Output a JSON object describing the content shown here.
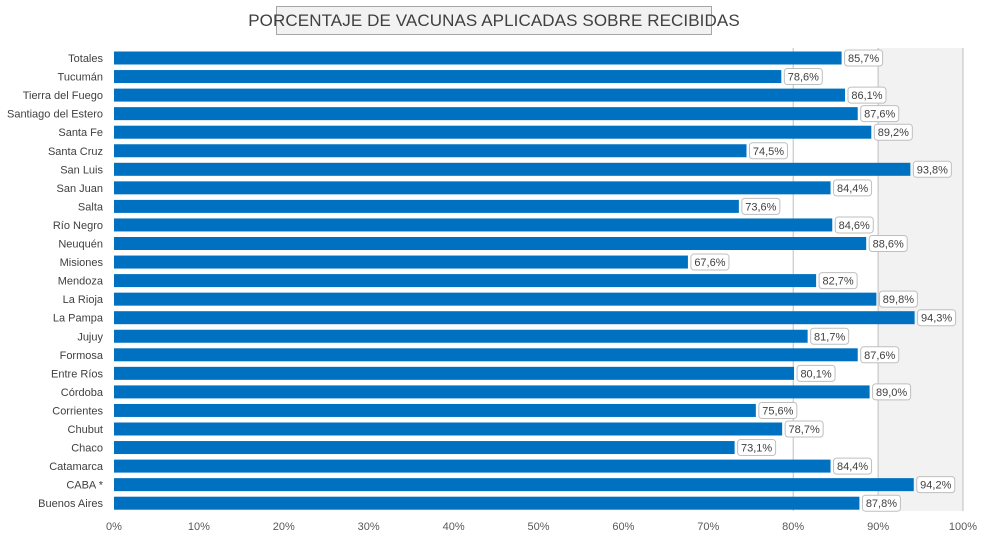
{
  "chart_data": {
    "type": "bar",
    "orientation": "horizontal",
    "title": "PORCENTAJE DE VACUNAS APLICADAS SOBRE RECIBIDAS",
    "categories": [
      "Totales",
      "Tucumán",
      "Tierra del Fuego",
      "Santiago del Estero",
      "Santa Fe",
      "Santa Cruz",
      "San Luis",
      "San Juan",
      "Salta",
      "Río Negro",
      "Neuquén",
      "Misiones",
      "Mendoza",
      "La Rioja",
      "La Pampa",
      "Jujuy",
      "Formosa",
      "Entre Ríos",
      "Córdoba",
      "Corrientes",
      "Chubut",
      "Chaco",
      "Catamarca",
      "CABA *",
      "Buenos Aires"
    ],
    "values": [
      85.7,
      78.6,
      86.1,
      87.6,
      89.2,
      74.5,
      93.8,
      84.4,
      73.6,
      84.6,
      88.6,
      67.6,
      82.7,
      89.8,
      94.3,
      81.7,
      87.6,
      80.1,
      89.0,
      75.6,
      78.7,
      73.1,
      84.4,
      94.2,
      87.8
    ],
    "value_labels": [
      "85,7%",
      "78,6%",
      "86,1%",
      "87,6%",
      "89,2%",
      "74,5%",
      "93,8%",
      "84,4%",
      "73,6%",
      "84,6%",
      "88,6%",
      "67,6%",
      "82,7%",
      "89,8%",
      "94,3%",
      "81,7%",
      "87,6%",
      "80,1%",
      "89,0%",
      "75,6%",
      "78,7%",
      "73,1%",
      "84,4%",
      "94,2%",
      "87,8%"
    ],
    "x_ticks": [
      "0%",
      "10%",
      "20%",
      "30%",
      "40%",
      "50%",
      "60%",
      "70%",
      "80%",
      "90%",
      "100%"
    ],
    "xlim": [
      0,
      100
    ],
    "grid": true,
    "legend": "none",
    "bar_color": "#0070c0",
    "shaded_band_color": "#f2f2f2"
  }
}
